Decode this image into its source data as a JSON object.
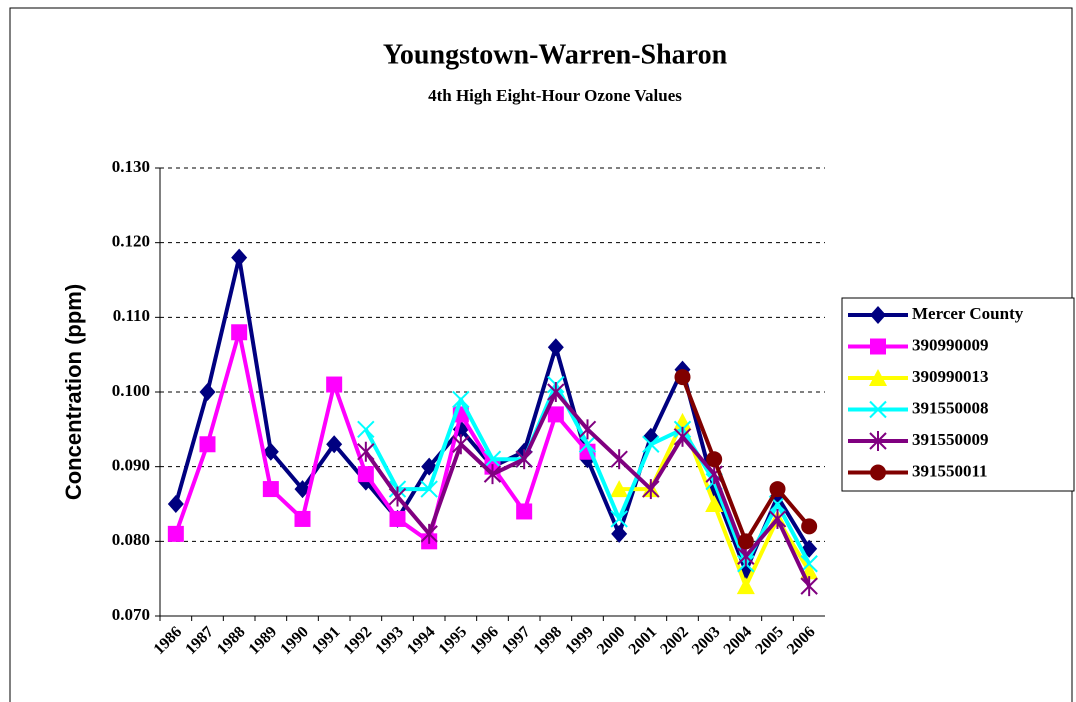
{
  "chart_data": {
    "type": "line",
    "title": "Youngstown-Warren-Sharon",
    "subtitle": "4th High Eight-Hour Ozone Values",
    "y_label": "Concentration (ppm)",
    "categories": [
      "1986",
      "1987",
      "1988",
      "1989",
      "1990",
      "1991",
      "1992",
      "1993",
      "1994",
      "1995",
      "1996",
      "1997",
      "1998",
      "1999",
      "2000",
      "2001",
      "2002",
      "2003",
      "2004",
      "2005",
      "2006"
    ],
    "ylim": [
      0.07,
      0.13
    ],
    "yticks": [
      {
        "value": 0.07,
        "label": "0.070"
      },
      {
        "value": 0.08,
        "label": "0.080"
      },
      {
        "value": 0.09,
        "label": "0.090"
      },
      {
        "value": 0.1,
        "label": "0.100"
      },
      {
        "value": 0.11,
        "label": "0.110"
      },
      {
        "value": 0.12,
        "label": "0.120"
      },
      {
        "value": 0.13,
        "label": "0.130"
      }
    ],
    "grid": true,
    "legend": "right",
    "series": [
      {
        "name": "Mercer County",
        "color": "#000080",
        "marker": "diamond",
        "values": [
          0.085,
          0.1,
          0.118,
          0.092,
          0.087,
          0.093,
          0.088,
          0.083,
          0.09,
          0.095,
          0.09,
          0.092,
          0.106,
          0.091,
          0.081,
          0.094,
          0.103,
          0.087,
          0.076,
          0.086,
          0.079
        ]
      },
      {
        "name": "390990009",
        "color": "#ff00ff",
        "marker": "square",
        "values": [
          0.081,
          0.093,
          0.108,
          0.087,
          0.083,
          0.101,
          0.089,
          0.083,
          0.08,
          0.097,
          0.09,
          0.084,
          0.097,
          0.092,
          null,
          null,
          null,
          null,
          null,
          null,
          null
        ]
      },
      {
        "name": "390990013",
        "color": "#ffff00",
        "marker": "triangle",
        "values": [
          null,
          null,
          null,
          null,
          null,
          null,
          null,
          null,
          null,
          null,
          null,
          null,
          null,
          null,
          0.087,
          0.087,
          0.096,
          0.085,
          0.074,
          0.083,
          0.076
        ]
      },
      {
        "name": "391550008",
        "color": "#00ffff",
        "marker": "x",
        "values": [
          null,
          null,
          null,
          null,
          null,
          null,
          0.095,
          0.087,
          0.087,
          0.099,
          0.091,
          0.091,
          0.101,
          0.093,
          0.083,
          0.093,
          0.095,
          0.088,
          0.077,
          0.085,
          0.077
        ]
      },
      {
        "name": "391550009",
        "color": "#800080",
        "marker": "star",
        "values": [
          null,
          null,
          null,
          null,
          null,
          null,
          0.092,
          0.086,
          0.081,
          0.093,
          0.089,
          0.091,
          0.1,
          0.095,
          0.091,
          0.087,
          0.094,
          0.089,
          0.078,
          0.083,
          0.074
        ]
      },
      {
        "name": "391550011",
        "color": "#800000",
        "marker": "circle",
        "values": [
          null,
          null,
          null,
          null,
          null,
          null,
          null,
          null,
          null,
          null,
          null,
          null,
          null,
          null,
          null,
          null,
          0.102,
          0.091,
          0.08,
          0.087,
          0.082
        ]
      }
    ]
  }
}
